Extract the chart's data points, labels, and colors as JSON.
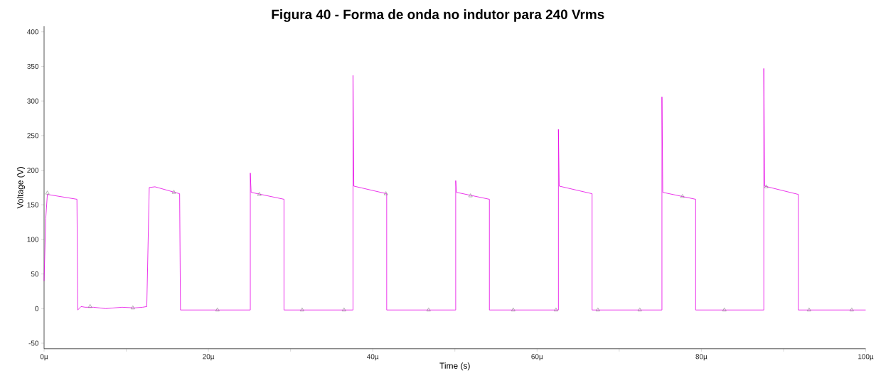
{
  "chart_data": {
    "type": "line",
    "title": "Figura 40 - Forma de onda no indutor para 240 Vrms",
    "xlabel": "Time (s)",
    "ylabel": "Voltage (V)",
    "xlim": [
      0,
      100
    ],
    "ylim": [
      -58,
      408
    ],
    "xticks": [
      {
        "value": 0,
        "label": "0µ"
      },
      {
        "value": 10,
        "label": null
      },
      {
        "value": 20,
        "label": "20µ"
      },
      {
        "value": 30,
        "label": null
      },
      {
        "value": 40,
        "label": "40µ"
      },
      {
        "value": 50,
        "label": null
      },
      {
        "value": 60,
        "label": "60µ"
      },
      {
        "value": 70,
        "label": null
      },
      {
        "value": 80,
        "label": "80µ"
      },
      {
        "value": 90,
        "label": null
      },
      {
        "value": 100,
        "label": "100µ"
      }
    ],
    "yticks": [
      -50,
      0,
      50,
      100,
      150,
      200,
      250,
      300,
      350,
      400
    ],
    "series": [
      {
        "type": "line",
        "color": "#e600e6",
        "marker": "none",
        "line_style": "solid",
        "x": [
          0,
          0.2,
          0.4,
          4.0,
          4.1,
          4.5,
          5.0,
          6.0,
          7.5,
          9.5,
          11.0,
          12.0,
          12.5,
          12.8,
          13.5,
          16.5,
          16.6,
          25.1,
          25.1,
          25.2,
          29.2,
          29.2,
          37.6,
          37.6,
          37.7,
          41.7,
          41.7,
          50.1,
          50.1,
          50.2,
          54.2,
          54.2,
          62.6,
          62.6,
          62.7,
          66.7,
          66.7,
          75.2,
          75.2,
          75.3,
          79.3,
          79.3,
          87.6,
          87.6,
          87.7,
          91.8,
          91.8,
          100
        ],
        "values": [
          40,
          130,
          165,
          158,
          -2,
          3,
          2,
          2,
          0,
          2,
          1,
          2,
          3,
          175,
          176,
          166,
          -2,
          -2,
          196,
          168,
          158,
          -2,
          -2,
          337,
          177,
          166,
          -2,
          -2,
          185,
          168,
          158,
          -2,
          -2,
          259,
          177,
          166,
          -2,
          -2,
          306,
          168,
          158,
          -2,
          -2,
          347,
          177,
          165,
          -2,
          -2
        ]
      },
      {
        "type": "scatter",
        "color": "#808080",
        "marker": "triangle",
        "x": [
          0.4,
          5.6,
          10.8,
          15.8,
          21.1,
          26.2,
          31.4,
          36.5,
          41.6,
          46.8,
          51.9,
          57.1,
          62.3,
          67.4,
          72.5,
          77.7,
          82.8,
          87.9,
          93.1,
          98.3
        ],
        "values": [
          167,
          3,
          1,
          168,
          -2,
          165,
          -2,
          -2,
          166,
          -2,
          163,
          -2,
          -2,
          -2,
          -2,
          162,
          -2,
          176,
          -2,
          -2
        ]
      }
    ]
  }
}
